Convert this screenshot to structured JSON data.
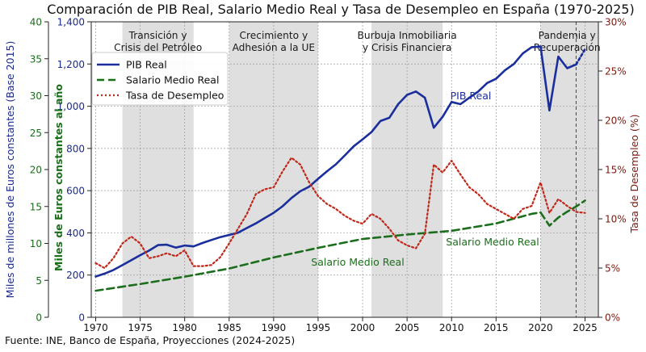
{
  "chart_data": {
    "type": "line",
    "title": "Comparación de PIB Real, Salario Medio Real y Tasa de Desempleo en España (1970-2025)",
    "source": "Fuente: INE, Banco de España, Proyecciones (2024-2025)",
    "x_axis": {
      "range": [
        1969.5,
        2026.5
      ],
      "ticks": [
        1970,
        1975,
        1980,
        1985,
        1990,
        1995,
        2000,
        2005,
        2010,
        2015,
        2020,
        2025
      ]
    },
    "y_left_outer": {
      "label": "Miles de millones de Euros constantes (Base 2015)",
      "range": [
        0,
        1400
      ],
      "ticks": [
        0,
        200,
        400,
        600,
        800,
        1000,
        1200,
        1400
      ],
      "tick_labels": [
        "0",
        "200",
        "400",
        "600",
        "800",
        "1,000",
        "1,200",
        "1,400"
      ],
      "color": "#1a2a8c"
    },
    "y_left_inner": {
      "label": "Miles de Euros constantes al año",
      "range": [
        0,
        40
      ],
      "ticks": [
        0,
        5,
        10,
        15,
        20,
        25,
        30,
        35,
        40
      ],
      "tick_labels": [
        "0",
        "5",
        "10",
        "15",
        "20",
        "25",
        "30",
        "35",
        "40"
      ],
      "color": "#1b6e1b"
    },
    "y_right": {
      "label": "Tasa de Desempleo (%)",
      "range": [
        0,
        30
      ],
      "ticks": [
        0,
        5,
        10,
        15,
        20,
        25,
        30
      ],
      "tick_labels": [
        "0%",
        "5%",
        "10%",
        "15%",
        "20%",
        "25%",
        "30%"
      ],
      "color": "#7a1a10"
    },
    "periods": [
      {
        "label_lines": [
          "Transición y",
          "Crisis del Petróleo"
        ],
        "start": 1973,
        "end": 1981
      },
      {
        "label_lines": [
          "Crecimiento y",
          "Adhesión a la UE"
        ],
        "start": 1985,
        "end": 1995
      },
      {
        "label_lines": [
          "Burbuja Inmobiliaria",
          "y Crisis Financiera"
        ],
        "start": 2001,
        "end": 2009
      },
      {
        "label_lines": [
          "Pandemia y",
          "Recuperación"
        ],
        "start": 2020,
        "end": 2026.5
      }
    ],
    "projection_start": 2024,
    "legend": {
      "position": "top-left",
      "entries": [
        "PIB Real",
        "Salario Medio Real",
        "Tasa de Desempleo"
      ]
    },
    "series": [
      {
        "name": "PIB Real",
        "axis": "y_left_outer",
        "color": "#1a2e9c",
        "style": "solid",
        "annotation": "PIB Real",
        "x": [
          1970,
          1971,
          1972,
          1973,
          1974,
          1975,
          1976,
          1977,
          1978,
          1979,
          1980,
          1981,
          1982,
          1983,
          1984,
          1985,
          1986,
          1987,
          1988,
          1989,
          1990,
          1991,
          1992,
          1993,
          1994,
          1995,
          1996,
          1997,
          1998,
          1999,
          2000,
          2001,
          2002,
          2003,
          2004,
          2005,
          2006,
          2007,
          2008,
          2009,
          2010,
          2011,
          2012,
          2013,
          2014,
          2015,
          2016,
          2017,
          2018,
          2019,
          2020,
          2021,
          2022,
          2023,
          2024,
          2025
        ],
        "y": [
          193,
          207,
          224,
          247,
          271,
          294,
          316,
          342,
          344,
          330,
          340,
          336,
          352,
          366,
          380,
          390,
          401,
          423,
          445,
          470,
          495,
          526,
          565,
          597,
          619,
          656,
          692,
          725,
          767,
          810,
          843,
          878,
          930,
          945,
          1010,
          1054,
          1070,
          1040,
          898,
          950,
          1020,
          1010,
          1040,
          1070,
          1110,
          1130,
          1170,
          1200,
          1250,
          1280,
          1283,
          980,
          1235,
          1180,
          1198,
          1270
        ],
        "projected_from": 2024
      },
      {
        "name": "Salario Medio Real",
        "axis": "y_left_inner",
        "color": "#1b6e1b",
        "style": "dashed",
        "annotations": [
          "Salario Medio Real",
          "Salario Medio Real"
        ],
        "x": [
          1970,
          1975,
          1980,
          1985,
          1990,
          1995,
          2000,
          2005,
          2010,
          2015,
          2019,
          2020,
          2021,
          2022,
          2023,
          2024,
          2025
        ],
        "y": [
          3.6,
          4.5,
          5.5,
          6.6,
          8.1,
          9.4,
          10.6,
          11.2,
          11.7,
          12.7,
          14.0,
          14.2,
          12.4,
          13.5,
          14.3,
          15.0,
          15.8
        ]
      },
      {
        "name": "Tasa de Desempleo",
        "axis": "y_right",
        "color": "#c0281a",
        "style": "dotted",
        "x": [
          1970,
          1971,
          1972,
          1973,
          1974,
          1975,
          1976,
          1977,
          1978,
          1979,
          1980,
          1981,
          1982,
          1983,
          1984,
          1985,
          1986,
          1987,
          1988,
          1989,
          1990,
          1991,
          1992,
          1993,
          1994,
          1995,
          1996,
          1997,
          1998,
          1999,
          2000,
          2001,
          2002,
          2003,
          2004,
          2005,
          2006,
          2007,
          2008,
          2009,
          2010,
          2011,
          2012,
          2013,
          2014,
          2015,
          2016,
          2017,
          2018,
          2019,
          2020,
          2021,
          2022,
          2023,
          2024,
          2025
        ],
        "y": [
          5.5,
          5.0,
          6.0,
          7.5,
          8.2,
          7.5,
          6.0,
          6.2,
          6.5,
          6.2,
          6.8,
          5.2,
          5.2,
          5.3,
          6.1,
          7.5,
          9.0,
          10.5,
          12.5,
          13.0,
          13.2,
          14.8,
          16.2,
          15.5,
          13.7,
          12.3,
          11.5,
          11.0,
          10.3,
          9.8,
          9.5,
          10.5,
          10.0,
          9.0,
          7.8,
          7.3,
          7.0,
          8.5,
          15.5,
          14.7,
          15.9,
          14.5,
          13.2,
          12.5,
          11.5,
          11.0,
          10.5,
          10.0,
          11.0,
          11.3,
          13.7,
          10.6,
          12.0,
          11.3,
          10.7,
          10.6
        ]
      }
    ]
  }
}
